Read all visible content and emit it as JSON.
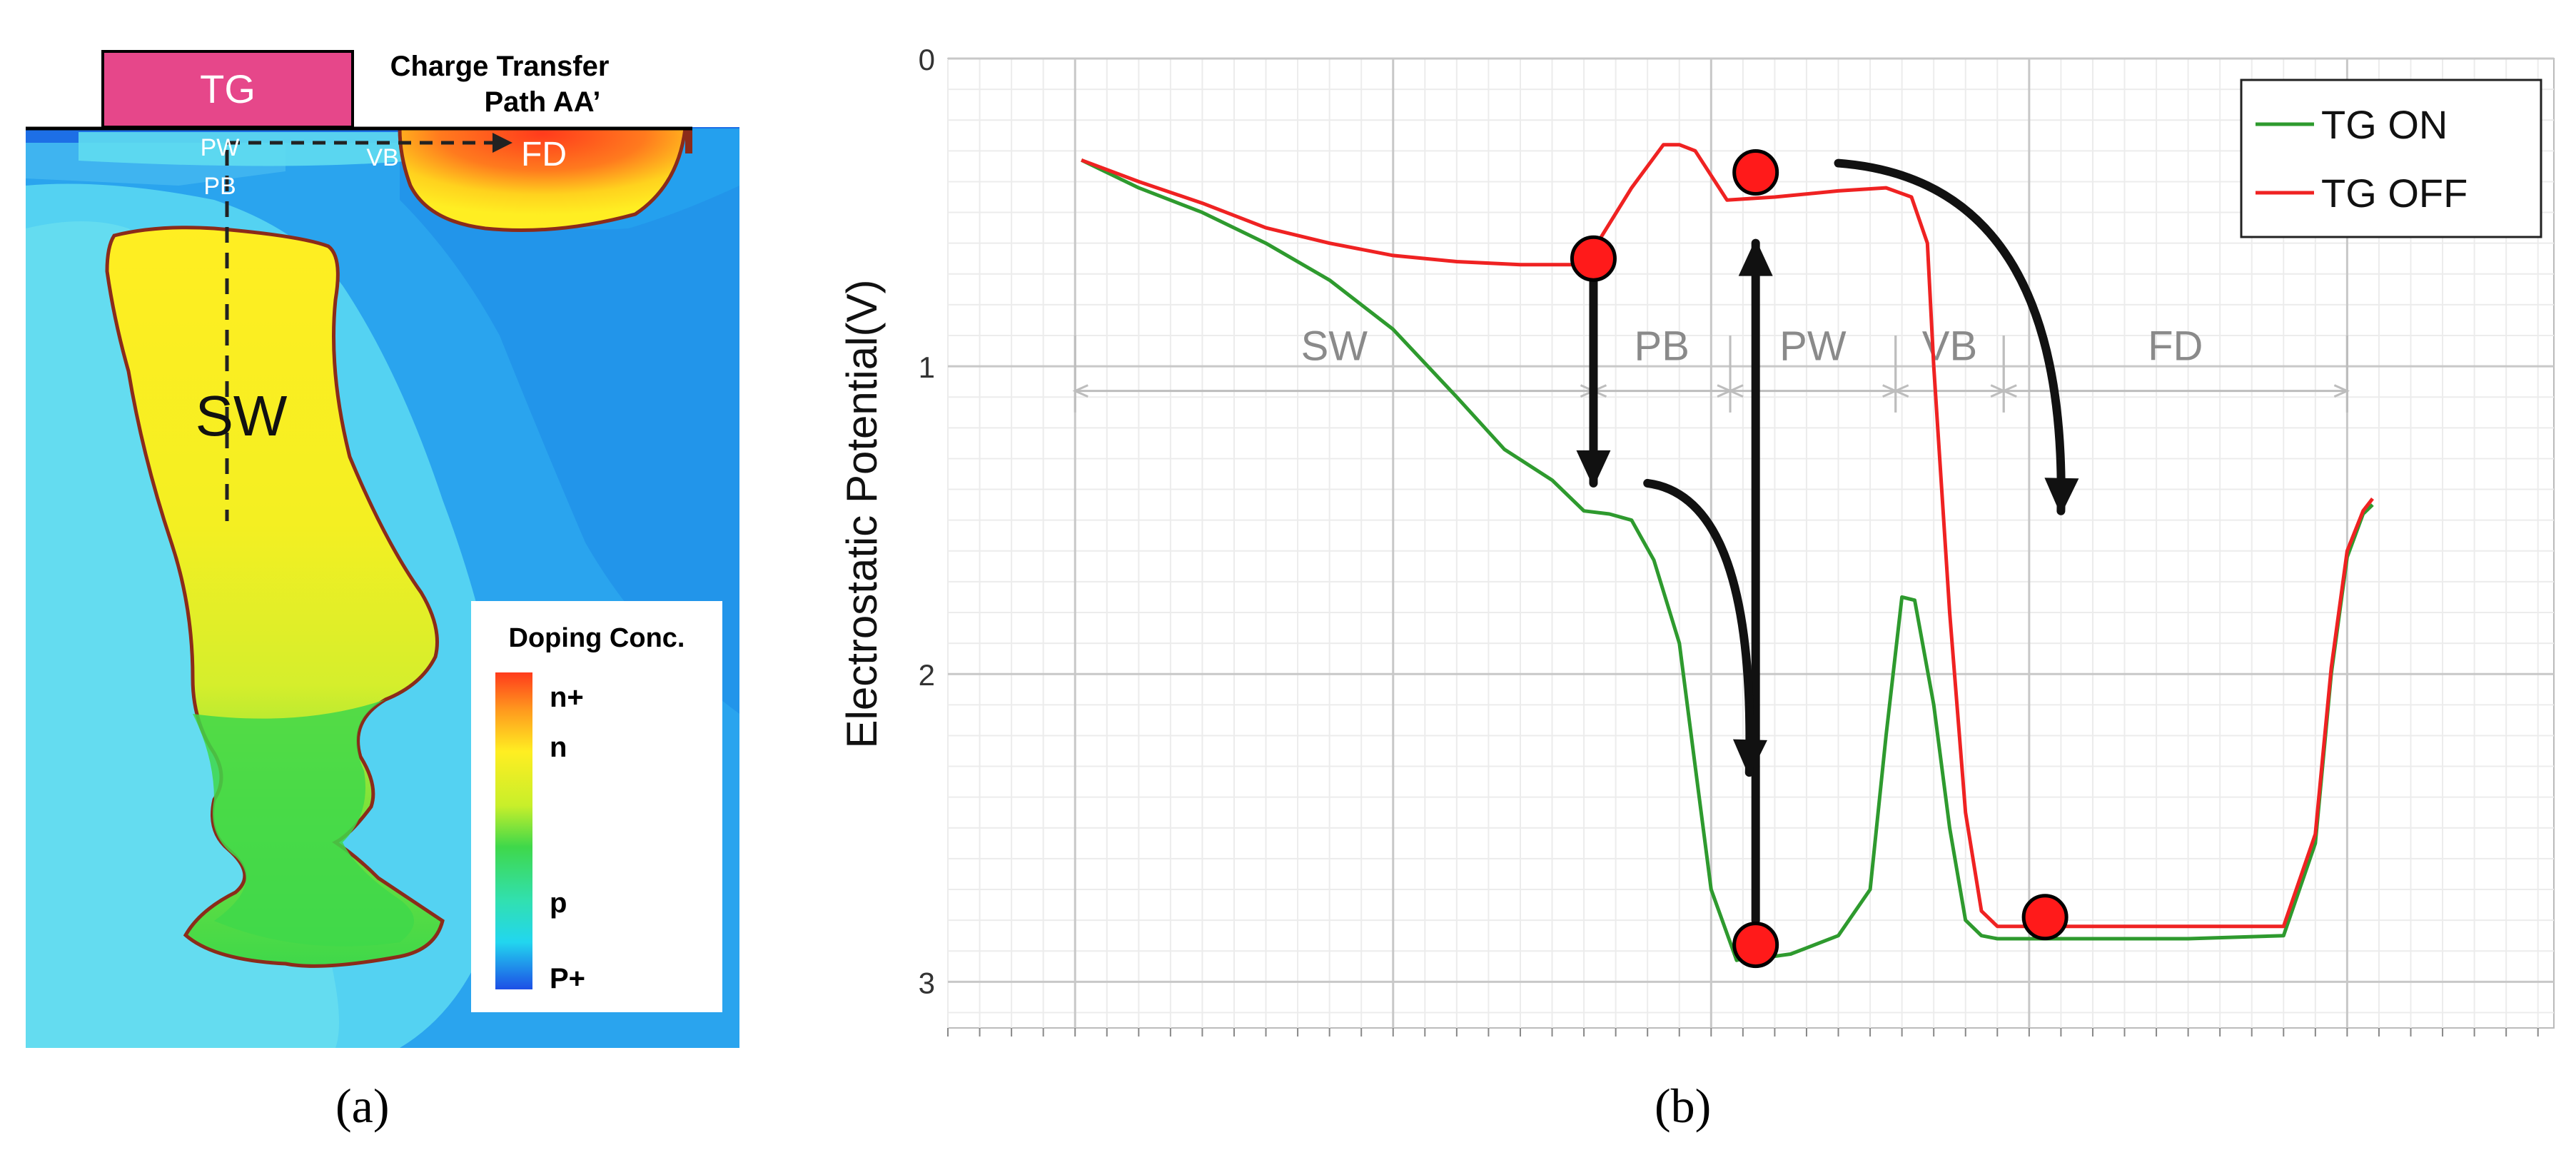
{
  "panel_a": {
    "label": "(a)",
    "tg_label": "TG",
    "path_title_line1": "Charge Transfer",
    "path_title_line2": "Path AA’",
    "region_pw": "PW",
    "region_pb": "PB",
    "region_vb": "VB",
    "region_fd": "FD",
    "region_sw": "SW",
    "legend": {
      "title": "Doping Conc.",
      "levels": [
        "n+",
        "n",
        "p",
        "P+"
      ],
      "colors": [
        "#ff3b1c",
        "#ffee22",
        "#3fd84a",
        "#22e0e8",
        "#1d4fe6"
      ]
    }
  },
  "panel_b": {
    "label": "(b)",
    "chart_data": {
      "type": "line",
      "title": "",
      "xlabel": "",
      "ylabel": "Electrostatic Potential(V)",
      "ylim": [
        0,
        3.15
      ],
      "y_inverted": true,
      "yticks": [
        0,
        1,
        2,
        3
      ],
      "xlim": [
        -0.4,
        4.65
      ],
      "grid": true,
      "legend_position": "top-right",
      "regions": [
        {
          "label": "SW",
          "start": 0.0,
          "end": 1.63
        },
        {
          "label": "PB",
          "start": 1.63,
          "end": 2.06
        },
        {
          "label": "PW",
          "start": 2.06,
          "end": 2.58
        },
        {
          "label": "VB",
          "start": 2.58,
          "end": 2.92
        },
        {
          "label": "FD",
          "start": 2.92,
          "end": 4.0
        }
      ],
      "series": [
        {
          "name": "TG ON",
          "color": "#2e9a2e",
          "x": [
            0.02,
            0.2,
            0.4,
            0.6,
            0.8,
            1.0,
            1.2,
            1.35,
            1.5,
            1.6,
            1.68,
            1.75,
            1.82,
            1.9,
            1.95,
            2.0,
            2.08,
            2.12,
            2.18,
            2.25,
            2.3,
            2.4,
            2.5,
            2.55,
            2.6,
            2.64,
            2.7,
            2.75,
            2.8,
            2.85,
            2.9,
            2.95,
            3.05,
            3.5,
            3.8,
            3.9,
            3.95,
            4.0,
            4.05,
            4.08
          ],
          "y": [
            0.33,
            0.42,
            0.5,
            0.6,
            0.72,
            0.88,
            1.1,
            1.27,
            1.37,
            1.47,
            1.48,
            1.5,
            1.63,
            1.9,
            2.3,
            2.7,
            2.93,
            2.92,
            2.92,
            2.91,
            2.89,
            2.85,
            2.7,
            2.2,
            1.75,
            1.76,
            2.1,
            2.5,
            2.8,
            2.85,
            2.86,
            2.86,
            2.86,
            2.86,
            2.85,
            2.55,
            2.0,
            1.62,
            1.48,
            1.45
          ]
        },
        {
          "name": "TG OFF",
          "color": "#ef2222",
          "x": [
            0.02,
            0.2,
            0.4,
            0.6,
            0.8,
            1.0,
            1.2,
            1.4,
            1.58,
            1.63,
            1.75,
            1.85,
            1.9,
            1.95,
            2.0,
            2.05,
            2.2,
            2.4,
            2.55,
            2.63,
            2.68,
            2.7,
            2.75,
            2.8,
            2.85,
            2.9,
            3.0,
            3.5,
            3.8,
            3.9,
            3.95,
            4.0,
            4.05,
            4.08
          ],
          "y": [
            0.33,
            0.4,
            0.47,
            0.55,
            0.6,
            0.64,
            0.66,
            0.67,
            0.67,
            0.62,
            0.42,
            0.28,
            0.28,
            0.3,
            0.38,
            0.46,
            0.45,
            0.43,
            0.42,
            0.45,
            0.6,
            1.0,
            1.8,
            2.45,
            2.77,
            2.82,
            2.82,
            2.82,
            2.82,
            2.52,
            1.98,
            1.6,
            1.47,
            1.43
          ]
        }
      ],
      "annotations": {
        "electrons": [
          {
            "x": 1.63,
            "y": 0.65
          },
          {
            "x": 2.14,
            "y": 0.37
          },
          {
            "x": 2.14,
            "y": 2.88
          },
          {
            "x": 3.05,
            "y": 2.79
          }
        ],
        "arrows": [
          {
            "kind": "straight",
            "from": [
              1.63,
              0.72
            ],
            "to": [
              1.63,
              1.38
            ]
          },
          {
            "kind": "straight",
            "from": [
              2.14,
              2.8
            ],
            "to": [
              2.14,
              0.6
            ]
          },
          {
            "kind": "curved",
            "from": [
              1.8,
              1.38
            ],
            "to": [
              2.12,
              2.32
            ]
          },
          {
            "kind": "curved",
            "from": [
              2.4,
              0.34
            ],
            "to": [
              3.1,
              1.47
            ]
          }
        ]
      }
    }
  }
}
